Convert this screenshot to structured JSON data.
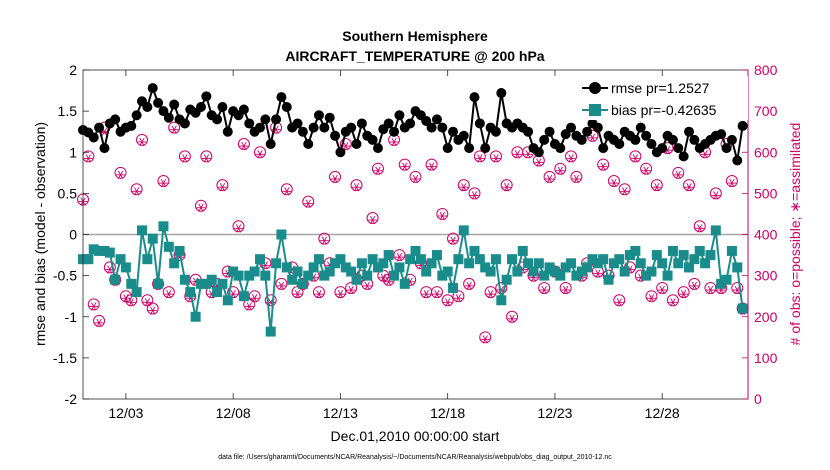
{
  "chart_data": {
    "type": "line",
    "title": "Southern Hemisphere",
    "subtitle": "AIRCRAFT_TEMPERATURE @ 200 hPa",
    "xlabel": "Dec.01,2010 00:00:00 start",
    "ylabel": "rmse and bias (model - observation)",
    "y2label": "# of obs: o=possible; ∗=assimilated",
    "footnote": "data file: /Users/gharamti/Documents/NCAR/Reanalysis/~/Documents/NCAR/Reanalysis/webpub/obs_diag_output_2010-12.nc",
    "xlim": [
      1,
      32
    ],
    "ylim": [
      -2,
      2
    ],
    "y2lim": [
      0,
      800
    ],
    "xticks": [
      3,
      8,
      13,
      18,
      23,
      28
    ],
    "xtick_labels": [
      "12/03",
      "12/08",
      "12/13",
      "12/18",
      "12/23",
      "12/28"
    ],
    "yticks": [
      -2,
      -1.5,
      -1,
      -0.5,
      0,
      0.5,
      1,
      1.5,
      2
    ],
    "ytick_labels": [
      "-2",
      "-1.5",
      "-1",
      "-0.5",
      "0",
      "0.5",
      "1",
      "1.5",
      "2"
    ],
    "y2ticks": [
      0,
      100,
      200,
      300,
      400,
      500,
      600,
      700,
      800
    ],
    "y2tick_labels": [
      "0",
      "100",
      "200",
      "300",
      "400",
      "500",
      "600",
      "700",
      "800"
    ],
    "grid": false,
    "zero_line": 0,
    "legend_position": "top-right",
    "colors": {
      "rmse": "#000000",
      "bias": "#1a8c8c",
      "obs": "#cc0066",
      "zero": "#a6a6a6",
      "axis": "#262626"
    },
    "series": [
      {
        "name": "rmse pr=1.2527",
        "axis": "left",
        "marker": "circle",
        "x": [
          1.0,
          1.25,
          1.5,
          1.75,
          2.0,
          2.25,
          2.5,
          2.75,
          3.0,
          3.25,
          3.5,
          3.75,
          4.0,
          4.25,
          4.5,
          4.75,
          5.0,
          5.25,
          5.5,
          5.75,
          6.0,
          6.25,
          6.5,
          6.75,
          7.0,
          7.25,
          7.5,
          7.75,
          8.0,
          8.25,
          8.5,
          8.75,
          9.0,
          9.25,
          9.5,
          9.75,
          10.0,
          10.25,
          10.5,
          10.75,
          11.0,
          11.25,
          11.5,
          11.75,
          12.0,
          12.25,
          12.5,
          12.75,
          13.0,
          13.25,
          13.5,
          13.75,
          14.0,
          14.25,
          14.5,
          14.75,
          15.0,
          15.25,
          15.5,
          15.75,
          16.0,
          16.25,
          16.5,
          16.75,
          17.0,
          17.25,
          17.5,
          17.75,
          18.0,
          18.25,
          18.5,
          18.75,
          19.0,
          19.25,
          19.5,
          19.75,
          20.0,
          20.25,
          20.5,
          20.75,
          21.0,
          21.25,
          21.5,
          21.75,
          22.0,
          22.25,
          22.5,
          22.75,
          23.0,
          23.25,
          23.5,
          23.75,
          24.0,
          24.25,
          24.5,
          24.75,
          25.0,
          25.25,
          25.5,
          25.75,
          26.0,
          26.25,
          26.5,
          26.75,
          27.0,
          27.25,
          27.5,
          27.75,
          28.0,
          28.25,
          28.5,
          28.75,
          29.0,
          29.25,
          29.5,
          29.75,
          30.0,
          30.25,
          30.5,
          30.75,
          31.0,
          31.25,
          31.5,
          31.75
        ],
        "values": [
          1.27,
          1.24,
          1.18,
          1.3,
          1.05,
          1.35,
          1.4,
          1.25,
          1.3,
          1.32,
          1.45,
          1.62,
          1.55,
          1.78,
          1.6,
          1.5,
          1.42,
          1.58,
          1.4,
          1.35,
          1.52,
          1.48,
          1.55,
          1.68,
          1.45,
          1.4,
          1.55,
          1.25,
          1.5,
          1.45,
          1.52,
          1.35,
          1.25,
          1.3,
          1.4,
          1.1,
          1.4,
          1.67,
          1.55,
          1.3,
          1.35,
          1.25,
          1.1,
          1.3,
          1.45,
          1.3,
          1.42,
          1.2,
          1.0,
          1.25,
          1.3,
          1.1,
          1.35,
          1.2,
          1.15,
          1.05,
          1.28,
          1.35,
          1.25,
          1.45,
          1.3,
          1.35,
          1.5,
          1.45,
          1.38,
          1.3,
          1.4,
          1.3,
          1.05,
          1.25,
          1.15,
          1.2,
          1.05,
          1.67,
          1.35,
          1.05,
          1.3,
          1.25,
          1.72,
          1.35,
          1.3,
          1.35,
          1.3,
          1.25,
          1.05,
          1.0,
          1.15,
          1.25,
          1.1,
          1.05,
          1.22,
          1.3,
          1.2,
          1.15,
          1.25,
          1.35,
          1.3,
          1.05,
          1.2,
          1.15,
          1.1,
          1.25,
          1.2,
          1.15,
          1.3,
          1.2,
          1.1,
          1.0,
          1.05,
          1.2,
          1.15,
          1.05,
          0.95,
          1.25,
          1.15,
          1.05,
          1.1,
          1.15,
          1.2,
          1.22,
          1.05,
          1.15,
          0.9,
          1.32
        ]
      },
      {
        "name": "bias pr=-0.42635",
        "axis": "left",
        "marker": "square",
        "x": [
          1.0,
          1.25,
          1.5,
          1.75,
          2.0,
          2.25,
          2.5,
          2.75,
          3.0,
          3.25,
          3.5,
          3.75,
          4.0,
          4.25,
          4.5,
          4.75,
          5.0,
          5.25,
          5.5,
          5.75,
          6.0,
          6.25,
          6.5,
          6.75,
          7.0,
          7.25,
          7.5,
          7.75,
          8.0,
          8.25,
          8.5,
          8.75,
          9.0,
          9.25,
          9.5,
          9.75,
          10.0,
          10.25,
          10.5,
          10.75,
          11.0,
          11.25,
          11.5,
          11.75,
          12.0,
          12.25,
          12.5,
          12.75,
          13.0,
          13.25,
          13.5,
          13.75,
          14.0,
          14.25,
          14.5,
          14.75,
          15.0,
          15.25,
          15.5,
          15.75,
          16.0,
          16.25,
          16.5,
          16.75,
          17.0,
          17.25,
          17.5,
          17.75,
          18.0,
          18.25,
          18.5,
          18.75,
          19.0,
          19.25,
          19.5,
          19.75,
          20.0,
          20.25,
          20.5,
          20.75,
          21.0,
          21.25,
          21.5,
          21.75,
          22.0,
          22.25,
          22.5,
          22.75,
          23.0,
          23.25,
          23.5,
          23.75,
          24.0,
          24.25,
          24.5,
          24.75,
          25.0,
          25.25,
          25.5,
          25.75,
          26.0,
          26.25,
          26.5,
          26.75,
          27.0,
          27.25,
          27.5,
          27.75,
          28.0,
          28.25,
          28.5,
          28.75,
          29.0,
          29.25,
          29.5,
          29.75,
          30.0,
          30.25,
          30.5,
          30.75,
          31.0,
          31.25,
          31.5,
          31.75
        ],
        "values": [
          -0.3,
          -0.3,
          -0.18,
          -0.2,
          -0.2,
          -0.22,
          -0.55,
          -0.3,
          -0.4,
          -0.6,
          -0.7,
          0.05,
          -0.3,
          -0.05,
          -0.6,
          0.1,
          -0.15,
          -0.35,
          -0.2,
          -0.55,
          -0.7,
          -1.0,
          -0.6,
          -0.6,
          -0.55,
          -0.7,
          -0.6,
          -0.8,
          -0.45,
          -0.5,
          -0.75,
          -0.5,
          -0.45,
          -0.3,
          -0.5,
          -1.18,
          -0.35,
          0.0,
          -0.4,
          -0.55,
          -0.45,
          -0.6,
          -0.5,
          -0.4,
          -0.3,
          -0.5,
          -0.45,
          -0.35,
          -0.3,
          -0.4,
          -0.45,
          -0.55,
          -0.35,
          -0.5,
          -0.3,
          -0.4,
          -0.35,
          -0.25,
          -0.5,
          -0.4,
          -0.6,
          -0.3,
          -0.2,
          -0.3,
          -0.45,
          -0.35,
          -0.25,
          -0.5,
          -0.45,
          -0.65,
          -0.3,
          0.05,
          -0.35,
          -0.2,
          -0.3,
          -0.4,
          -0.45,
          -0.3,
          -0.8,
          -0.55,
          -0.3,
          -0.45,
          -0.2,
          -0.35,
          -0.45,
          -0.35,
          -0.5,
          -0.4,
          -0.45,
          -0.5,
          -0.4,
          -0.35,
          -0.5,
          -0.45,
          -0.4,
          -0.3,
          -0.35,
          -0.3,
          -0.55,
          -0.35,
          -0.3,
          -0.45,
          -0.25,
          -0.2,
          -0.35,
          -0.5,
          -0.45,
          -0.25,
          -0.35,
          -0.5,
          -0.2,
          -0.35,
          -0.25,
          -0.4,
          -0.3,
          -0.2,
          -0.35,
          -0.25,
          0.05,
          -0.6,
          -0.55,
          -0.2,
          -0.4,
          -0.9
        ]
      },
      {
        "name": "# of obs possible",
        "axis": "right",
        "marker": "circle-open",
        "x": [
          1.0,
          1.25,
          1.5,
          1.75,
          2.0,
          2.25,
          2.5,
          2.75,
          3.0,
          3.25,
          3.5,
          3.75,
          4.0,
          4.25,
          4.5,
          4.75,
          5.0,
          5.25,
          5.5,
          5.75,
          6.0,
          6.25,
          6.5,
          6.75,
          7.0,
          7.25,
          7.5,
          7.75,
          8.0,
          8.25,
          8.5,
          8.75,
          9.0,
          9.25,
          9.5,
          9.75,
          10.0,
          10.25,
          10.5,
          10.75,
          11.0,
          11.25,
          11.5,
          11.75,
          12.0,
          12.25,
          12.5,
          12.75,
          13.0,
          13.25,
          13.5,
          13.75,
          14.0,
          14.25,
          14.5,
          14.75,
          15.0,
          15.25,
          15.5,
          15.75,
          16.0,
          16.25,
          16.5,
          16.75,
          17.0,
          17.25,
          17.5,
          17.75,
          18.0,
          18.25,
          18.5,
          18.75,
          19.0,
          19.25,
          19.5,
          19.75,
          20.0,
          20.25,
          20.5,
          20.75,
          21.0,
          21.25,
          21.5,
          21.75,
          22.0,
          22.25,
          22.5,
          22.75,
          23.0,
          23.25,
          23.5,
          23.75,
          24.0,
          24.25,
          24.5,
          24.75,
          25.0,
          25.25,
          25.5,
          25.75,
          26.0,
          26.25,
          26.5,
          26.75,
          27.0,
          27.25,
          27.5,
          27.75,
          28.0,
          28.25,
          28.5,
          28.75,
          29.0,
          29.25,
          29.5,
          29.75,
          30.0,
          30.25,
          30.5,
          30.75,
          31.0,
          31.25,
          31.5,
          31.75
        ],
        "values": [
          485,
          590,
          230,
          190,
          660,
          320,
          290,
          550,
          250,
          240,
          510,
          630,
          240,
          220,
          280,
          530,
          260,
          660,
          350,
          590,
          250,
          290,
          470,
          590,
          260,
          280,
          520,
          310,
          260,
          420,
          620,
          230,
          250,
          600,
          330,
          240,
          660,
          280,
          510,
          320,
          260,
          280,
          480,
          300,
          260,
          390,
          330,
          540,
          260,
          620,
          270,
          520,
          300,
          280,
          440,
          560,
          300,
          290,
          630,
          350,
          570,
          290,
          540,
          330,
          260,
          570,
          260,
          450,
          240,
          390,
          250,
          520,
          280,
          500,
          590,
          150,
          260,
          590,
          270,
          520,
          200,
          600,
          320,
          600,
          300,
          580,
          270,
          540,
          310,
          560,
          270,
          590,
          540,
          300,
          330,
          640,
          310,
          570,
          300,
          530,
          240,
          510,
          320,
          590,
          300,
          560,
          250,
          520,
          270,
          610,
          240,
          550,
          260,
          520,
          280,
          420,
          600,
          270,
          500,
          270,
          620,
          530,
          270,
          220
        ]
      },
      {
        "name": "# of obs assimilated",
        "axis": "right",
        "marker": "asterisk",
        "x": [
          1.0,
          1.25,
          1.5,
          1.75,
          2.0,
          2.25,
          2.5,
          2.75,
          3.0,
          3.25,
          3.5,
          3.75,
          4.0,
          4.25,
          4.5,
          4.75,
          5.0,
          5.25,
          5.5,
          5.75,
          6.0,
          6.25,
          6.5,
          6.75,
          7.0,
          7.25,
          7.5,
          7.75,
          8.0,
          8.25,
          8.5,
          8.75,
          9.0,
          9.25,
          9.5,
          9.75,
          10.0,
          10.25,
          10.5,
          10.75,
          11.0,
          11.25,
          11.5,
          11.75,
          12.0,
          12.25,
          12.5,
          12.75,
          13.0,
          13.25,
          13.5,
          13.75,
          14.0,
          14.25,
          14.5,
          14.75,
          15.0,
          15.25,
          15.5,
          15.75,
          16.0,
          16.25,
          16.5,
          16.75,
          17.0,
          17.25,
          17.5,
          17.75,
          18.0,
          18.25,
          18.5,
          18.75,
          19.0,
          19.25,
          19.5,
          19.75,
          20.0,
          20.25,
          20.5,
          20.75,
          21.0,
          21.25,
          21.5,
          21.75,
          22.0,
          22.25,
          22.5,
          22.75,
          23.0,
          23.25,
          23.5,
          23.75,
          24.0,
          24.25,
          24.5,
          24.75,
          25.0,
          25.25,
          25.5,
          25.75,
          26.0,
          26.25,
          26.5,
          26.75,
          27.0,
          27.25,
          27.5,
          27.75,
          28.0,
          28.25,
          28.5,
          28.75,
          29.0,
          29.25,
          29.5,
          29.75,
          30.0,
          30.25,
          30.5,
          30.75,
          31.0,
          31.25,
          31.5,
          31.75
        ],
        "values": [
          480,
          585,
          225,
          185,
          650,
          315,
          285,
          545,
          245,
          235,
          505,
          625,
          235,
          215,
          275,
          525,
          255,
          655,
          345,
          585,
          245,
          285,
          465,
          585,
          255,
          275,
          515,
          305,
          255,
          415,
          615,
          225,
          245,
          595,
          325,
          235,
          655,
          275,
          505,
          315,
          255,
          275,
          475,
          295,
          255,
          385,
          325,
          535,
          255,
          615,
          265,
          515,
          295,
          275,
          435,
          555,
          295,
          285,
          625,
          345,
          565,
          285,
          535,
          325,
          255,
          565,
          255,
          445,
          235,
          385,
          245,
          515,
          275,
          495,
          585,
          145,
          255,
          585,
          265,
          515,
          195,
          595,
          315,
          595,
          295,
          575,
          265,
          535,
          305,
          555,
          265,
          585,
          535,
          295,
          325,
          635,
          305,
          565,
          295,
          525,
          235,
          505,
          315,
          585,
          295,
          555,
          245,
          515,
          265,
          605,
          235,
          545,
          255,
          515,
          275,
          415,
          595,
          265,
          495,
          265,
          615,
          525,
          265,
          215
        ]
      }
    ]
  }
}
